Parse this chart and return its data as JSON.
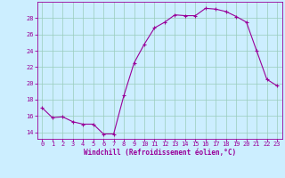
{
  "x": [
    0,
    1,
    2,
    3,
    4,
    5,
    6,
    7,
    8,
    9,
    10,
    11,
    12,
    13,
    14,
    15,
    16,
    17,
    18,
    19,
    20,
    21,
    22,
    23
  ],
  "y": [
    17.0,
    15.8,
    15.9,
    15.3,
    15.0,
    15.0,
    13.8,
    13.8,
    18.5,
    22.5,
    24.8,
    26.8,
    27.5,
    28.4,
    28.3,
    28.3,
    29.2,
    29.1,
    28.8,
    28.2,
    27.5,
    24.0,
    20.5,
    19.7
  ],
  "line_color": "#990099",
  "marker": "+",
  "marker_size": 3,
  "marker_linewidth": 0.8,
  "bg_color": "#cceeff",
  "grid_color": "#99ccbb",
  "xlabel": "Windchill (Refroidissement éolien,°C)",
  "xlabel_color": "#990099",
  "ylabel_ticks": [
    14,
    16,
    18,
    20,
    22,
    24,
    26,
    28
  ],
  "ylim": [
    13.2,
    30.0
  ],
  "xlim": [
    -0.5,
    23.5
  ],
  "tick_color": "#990099",
  "spine_color": "#990099",
  "tick_fontsize": 5.0,
  "xlabel_fontsize": 5.5,
  "linewidth": 0.8
}
